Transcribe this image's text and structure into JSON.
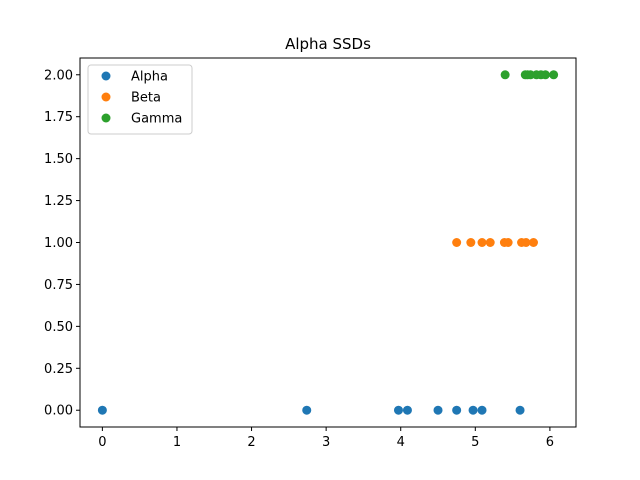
{
  "chart_data": {
    "type": "scatter",
    "title": "Alpha SSDs",
    "xlabel": "",
    "ylabel": "",
    "xlim": [
      -0.3,
      6.35
    ],
    "ylim": [
      -0.1,
      2.1
    ],
    "xticks": [
      0,
      1,
      2,
      3,
      4,
      5,
      6
    ],
    "xtick_labels": [
      "0",
      "1",
      "2",
      "3",
      "4",
      "5",
      "6"
    ],
    "yticks": [
      0.0,
      0.25,
      0.5,
      0.75,
      1.0,
      1.25,
      1.5,
      1.75,
      2.0
    ],
    "ytick_labels": [
      "0.00",
      "0.25",
      "0.50",
      "0.75",
      "1.00",
      "1.25",
      "1.50",
      "1.75",
      "2.00"
    ],
    "grid": false,
    "legend_position": "top-left",
    "series": [
      {
        "name": "Alpha",
        "color": "#1f77b4",
        "x": [
          0.0,
          2.74,
          3.97,
          4.09,
          4.5,
          4.75,
          4.97,
          5.09,
          5.6
        ],
        "y": [
          0,
          0,
          0,
          0,
          0,
          0,
          0,
          0,
          0
        ]
      },
      {
        "name": "Beta",
        "color": "#ff7f0e",
        "x": [
          4.75,
          4.94,
          5.09,
          5.2,
          5.39,
          5.44,
          5.62,
          5.68,
          5.78
        ],
        "y": [
          1,
          1,
          1,
          1,
          1,
          1,
          1,
          1,
          1
        ]
      },
      {
        "name": "Gamma",
        "color": "#2ca02c",
        "x": [
          5.4,
          5.67,
          5.7,
          5.74,
          5.82,
          5.88,
          5.94,
          6.05
        ],
        "y": [
          2,
          2,
          2,
          2,
          2,
          2,
          2,
          2
        ]
      }
    ]
  }
}
